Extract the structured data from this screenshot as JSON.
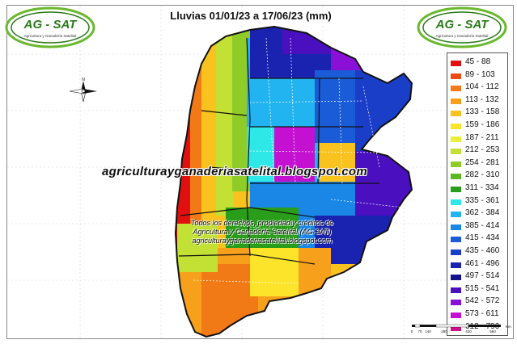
{
  "title": "Lluvias 01/01/23 a 17/06/23 (mm)",
  "logo": {
    "text": "AG - SAT",
    "subtitle": "Agricultura y Ganadería Satelital"
  },
  "compass": {
    "label": "N"
  },
  "legend": {
    "items": [
      {
        "label": "45 - 88",
        "color": "#e01010"
      },
      {
        "label": "89 - 103",
        "color": "#ee4a12"
      },
      {
        "label": "104 - 112",
        "color": "#f27a16"
      },
      {
        "label": "113 - 132",
        "color": "#f7a01c"
      },
      {
        "label": "133 - 158",
        "color": "#f9c21e"
      },
      {
        "label": "159 - 186",
        "color": "#fbe42a"
      },
      {
        "label": "187 - 211",
        "color": "#e8f03a"
      },
      {
        "label": "212 - 253",
        "color": "#c3e034"
      },
      {
        "label": "254 - 281",
        "color": "#8fcc28"
      },
      {
        "label": "282 - 310",
        "color": "#5bb820"
      },
      {
        "label": "311 - 334",
        "color": "#2a9e1a"
      },
      {
        "label": "335 - 361",
        "color": "#2ee8e8"
      },
      {
        "label": "362 - 384",
        "color": "#22b4f0"
      },
      {
        "label": "385 - 414",
        "color": "#1a86e6"
      },
      {
        "label": "415 - 434",
        "color": "#1a5cd8"
      },
      {
        "label": "435 - 460",
        "color": "#1a3ec8"
      },
      {
        "label": "461 - 496",
        "color": "#1a22b0"
      },
      {
        "label": "497 - 514",
        "color": "#16128e"
      },
      {
        "label": "515 - 541",
        "color": "#4a10c0"
      },
      {
        "label": "542 - 572",
        "color": "#8a10d8"
      },
      {
        "label": "573 - 611",
        "color": "#c410d0"
      },
      {
        "label": "612 - 790",
        "color": "#d0108a"
      }
    ]
  },
  "watermark": {
    "url": "agriculturayganaderiasatelital.blogspot.com",
    "copyright_lines": [
      "Todos los derechos, propiedad y créditos de",
      "Agricultura y Ganadería Satelital (AG-SAT)",
      "agriculturayganaderiasatelital.blogspot.com"
    ]
  },
  "scale_bar": {
    "ticks": [
      "0",
      "70",
      "140",
      "280",
      "420",
      "560"
    ],
    "unit": "Km"
  }
}
